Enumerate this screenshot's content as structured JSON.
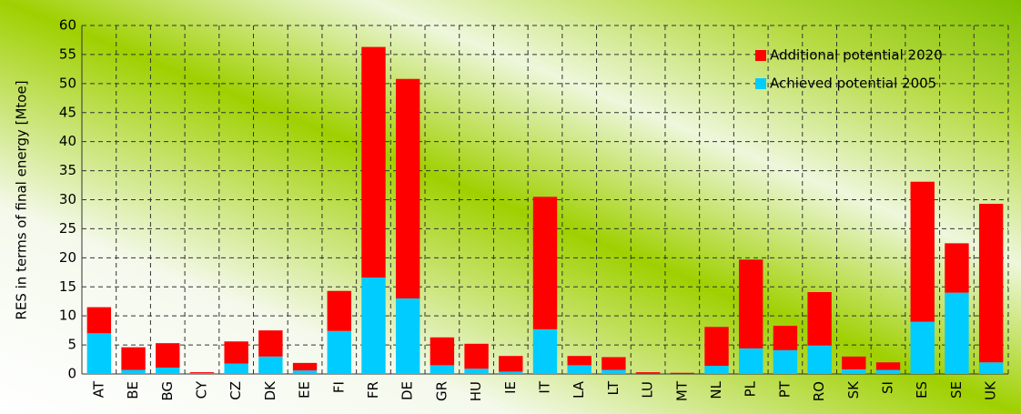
{
  "chart_data": {
    "type": "stacked_bar",
    "ylabel": "RES in terms of final energy [Mtoe]",
    "categories": [
      "AT",
      "BE",
      "BG",
      "CY",
      "CZ",
      "DK",
      "EE",
      "FI",
      "FR",
      "DE",
      "GR",
      "HU",
      "IE",
      "IT",
      "LA",
      "LT",
      "LU",
      "MT",
      "NL",
      "PL",
      "PT",
      "RO",
      "SK",
      "SI",
      "ES",
      "SE",
      "UK"
    ],
    "series": [
      {
        "name": "Achieved potential 2005",
        "color": "#00ccff",
        "values": [
          7.0,
          0.7,
          1.1,
          0.1,
          1.8,
          3.0,
          0.6,
          7.4,
          16.6,
          13.0,
          1.5,
          0.9,
          0.4,
          7.7,
          1.5,
          0.7,
          0.05,
          0.0,
          1.4,
          4.4,
          4.1,
          4.9,
          0.8,
          0.7,
          9.0,
          14.0,
          2.0
        ]
      },
      {
        "name": "Additional potential 2020",
        "color": "#ff0000",
        "values": [
          4.5,
          3.9,
          4.2,
          0.2,
          3.8,
          4.5,
          1.3,
          6.9,
          39.7,
          37.8,
          4.8,
          4.3,
          2.7,
          22.8,
          1.6,
          2.2,
          0.25,
          0.2,
          6.7,
          15.3,
          4.2,
          9.2,
          2.2,
          1.3,
          24.1,
          8.5,
          27.3
        ]
      }
    ],
    "ylim": [
      0,
      60
    ],
    "yticks": [
      0,
      5,
      10,
      15,
      20,
      25,
      30,
      35,
      40,
      45,
      50,
      55,
      60
    ],
    "grid": true,
    "legend": "upper right"
  }
}
